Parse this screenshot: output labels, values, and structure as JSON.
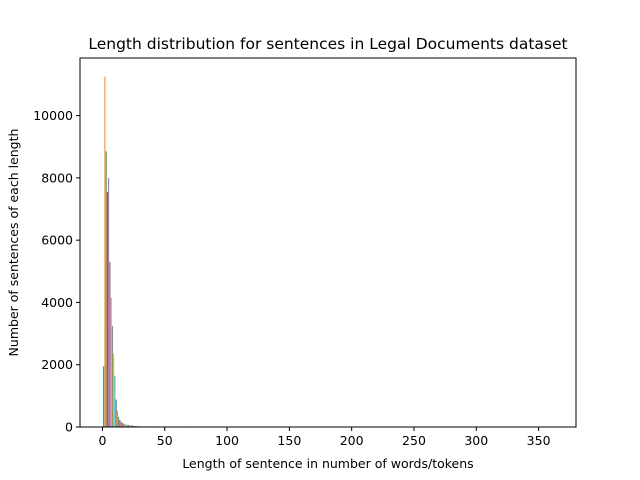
{
  "chart_data": {
    "type": "bar",
    "title": "Length distribution for sentences in Legal Documents dataset",
    "xlabel": "Length of sentence in number of words/tokens",
    "ylabel": "Number of sentences of each length",
    "xlim": [
      -18,
      380
    ],
    "ylim": [
      0,
      11850
    ],
    "xticks": [
      0,
      50,
      100,
      150,
      200,
      250,
      300,
      350
    ],
    "yticks": [
      0,
      2000,
      4000,
      6000,
      8000,
      10000
    ],
    "grid": false,
    "bar_colors": [
      "#1f77b4",
      "#ff7f0e",
      "#2ca02c",
      "#d62728",
      "#9467bd",
      "#8c564b",
      "#e377c2",
      "#7f7f7f",
      "#bcbd22",
      "#17becf"
    ],
    "x": [
      1,
      2,
      3,
      4,
      5,
      6,
      7,
      8,
      9,
      10,
      11,
      12,
      13,
      14,
      15,
      16,
      17,
      18,
      19,
      20,
      21,
      22,
      23,
      24,
      25,
      26,
      27,
      28,
      29,
      30,
      31,
      32,
      33,
      34,
      35,
      36,
      37,
      38,
      39,
      40,
      45,
      50,
      60,
      70,
      80,
      100,
      120,
      150,
      200,
      250,
      300,
      365
    ],
    "values": [
      1950,
      11250,
      8850,
      7550,
      8000,
      5300,
      4150,
      3250,
      2350,
      1650,
      880,
      520,
      320,
      220,
      170,
      130,
      110,
      90,
      80,
      70,
      60,
      55,
      50,
      45,
      40,
      35,
      30,
      28,
      25,
      22,
      20,
      18,
      16,
      14,
      12,
      10,
      9,
      8,
      7,
      6,
      4,
      3,
      2,
      2,
      1,
      1,
      1,
      1,
      1,
      1,
      1,
      1
    ]
  }
}
